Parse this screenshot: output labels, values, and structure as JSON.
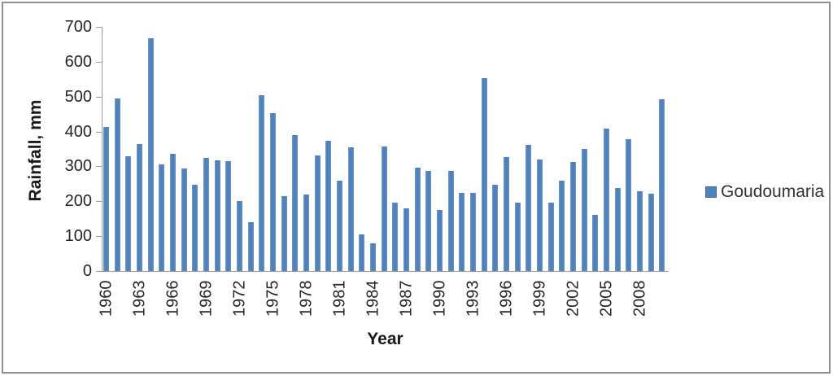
{
  "frame": {
    "border_color": "#8e8e8e",
    "background": "#ffffff"
  },
  "legend": {
    "label": "Goudoumaria",
    "marker_color": "#4f81bd",
    "position": "right"
  },
  "axes": {
    "y_title": "Rainfall, mm",
    "x_title": "Year",
    "axis_color": "#9b9b9b",
    "tick_label_color": "#262626"
  },
  "chart_data": {
    "type": "bar",
    "title": "",
    "xlabel": "Year",
    "ylabel": "Rainfall, mm",
    "legend_entries": [
      "Goudoumaria"
    ],
    "legend_position": "right",
    "grid": false,
    "ylim": [
      0,
      700
    ],
    "ytick_step": 100,
    "ytick_labels": [
      "0",
      "100",
      "200",
      "300",
      "400",
      "500",
      "600",
      "700"
    ],
    "xtick_labels_shown": [
      "1960",
      "1963",
      "1966",
      "1969",
      "1972",
      "1975",
      "1978",
      "1981",
      "1984",
      "1987",
      "1990",
      "1993",
      "1996",
      "1999",
      "2002",
      "2005",
      "2008"
    ],
    "bar_color": "#4f81bd",
    "series": [
      {
        "name": "Goudoumaria",
        "x": [
          1960,
          1961,
          1962,
          1963,
          1964,
          1965,
          1966,
          1967,
          1968,
          1969,
          1970,
          1971,
          1972,
          1973,
          1974,
          1975,
          1976,
          1977,
          1978,
          1979,
          1980,
          1981,
          1982,
          1983,
          1984,
          1985,
          1986,
          1987,
          1988,
          1989,
          1990,
          1991,
          1992,
          1993,
          1994,
          1995,
          1996,
          1997,
          1998,
          1999,
          2000,
          2001,
          2002,
          2003,
          2004,
          2005,
          2006,
          2007,
          2008,
          2009,
          2010
        ],
        "values": [
          413,
          494,
          330,
          363,
          668,
          306,
          335,
          293,
          248,
          325,
          317,
          314,
          200,
          140,
          503,
          452,
          215,
          389,
          219,
          331,
          374,
          259,
          355,
          104,
          79,
          358,
          196,
          180,
          297,
          287,
          174,
          287,
          224,
          224,
          554,
          247,
          326,
          196,
          361,
          319,
          196,
          260,
          312,
          350,
          160,
          408,
          238,
          377,
          229,
          222,
          492
        ]
      }
    ]
  }
}
